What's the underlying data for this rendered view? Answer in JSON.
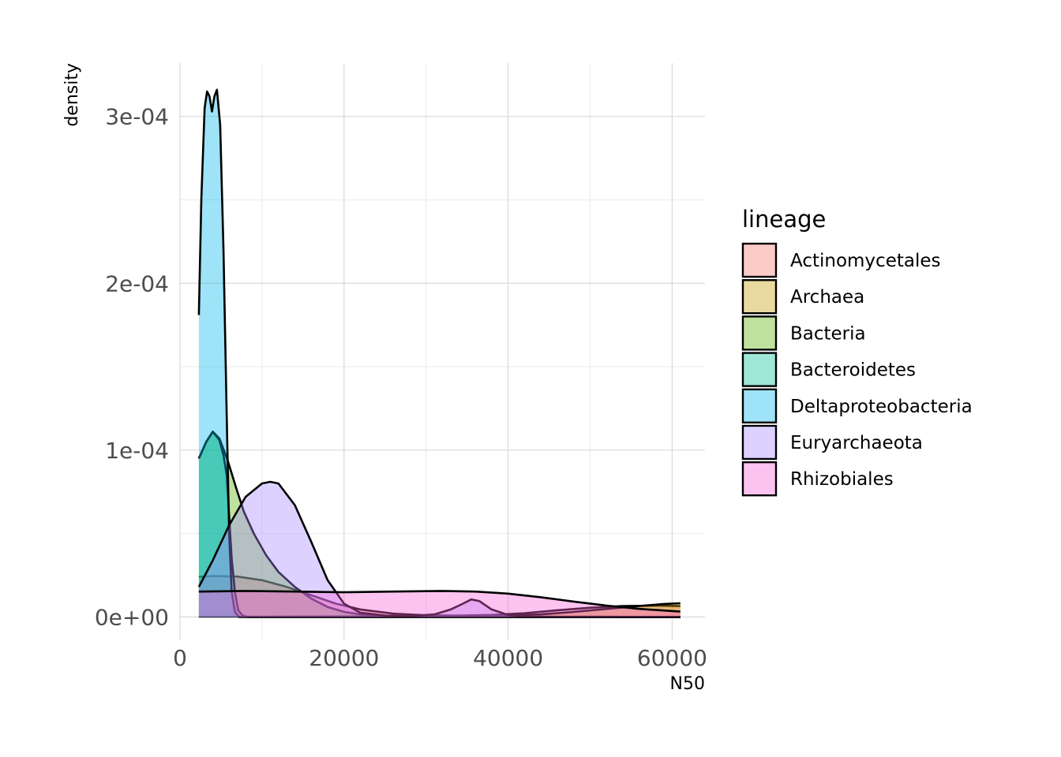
{
  "chart_data": {
    "type": "area",
    "subtype": "density",
    "xlabel": "N50",
    "ylabel": "density",
    "xlim": [
      0,
      64000
    ],
    "ylim": [
      -1.4e-05,
      0.000332
    ],
    "x_ticks": [
      0,
      20000,
      40000,
      60000
    ],
    "x_tick_labels": [
      "0",
      "20000",
      "40000",
      "60000"
    ],
    "y_ticks": [
      0,
      0.0001,
      0.0002,
      0.0003
    ],
    "y_tick_labels": [
      "0e+00",
      "1e-04",
      "2e-04",
      "3e-04"
    ],
    "grid": true,
    "legend": {
      "title": "lineage",
      "position": "right"
    },
    "series": [
      {
        "name": "Actinomycetales",
        "color": "#F8766D",
        "points": [
          [
            2300,
            2.4e-05
          ],
          [
            4000,
            2.45e-05
          ],
          [
            7000,
            2.42e-05
          ],
          [
            10000,
            2.2e-05
          ],
          [
            13000,
            1.8e-05
          ],
          [
            16000,
            1.3e-05
          ],
          [
            19000,
            8e-06
          ],
          [
            22000,
            4.5e-06
          ],
          [
            26000,
            2e-06
          ],
          [
            30000,
            1e-06
          ],
          [
            34000,
            8e-07
          ],
          [
            38000,
            1.2e-06
          ],
          [
            42000,
            2.2e-06
          ],
          [
            46000,
            4e-06
          ],
          [
            50000,
            5.5e-06
          ],
          [
            54000,
            6.5e-06
          ],
          [
            58000,
            6.8e-06
          ],
          [
            61000,
            6.5e-06
          ]
        ]
      },
      {
        "name": "Archaea",
        "color": "#C49A00",
        "points": [
          [
            2300,
            2e-07
          ],
          [
            10000,
            2e-07
          ],
          [
            20000,
            3e-07
          ],
          [
            30000,
            4e-07
          ],
          [
            36000,
            5e-07
          ],
          [
            40000,
            8e-07
          ],
          [
            44000,
            1.5e-06
          ],
          [
            48000,
            3e-06
          ],
          [
            52000,
            4.8e-06
          ],
          [
            56000,
            6.5e-06
          ],
          [
            59000,
            7.8e-06
          ],
          [
            61000,
            8.2e-06
          ]
        ]
      },
      {
        "name": "Bacteria",
        "color": "#53B400",
        "points": [
          [
            2300,
            9.5e-05
          ],
          [
            3200,
            0.000105
          ],
          [
            4000,
            0.000111
          ],
          [
            4800,
            0.000107
          ],
          [
            5800,
            9.4e-05
          ],
          [
            6800,
            7.8e-05
          ],
          [
            7800,
            6.3e-05
          ],
          [
            9000,
            5e-05
          ],
          [
            10500,
            3.7e-05
          ],
          [
            12000,
            2.7e-05
          ],
          [
            14000,
            1.8e-05
          ],
          [
            16000,
            1.1e-05
          ],
          [
            18000,
            6e-06
          ],
          [
            20000,
            3e-06
          ],
          [
            22000,
            1.5e-06
          ],
          [
            25000,
            5e-07
          ],
          [
            28000,
            1e-07
          ],
          [
            61000,
            0
          ]
        ]
      },
      {
        "name": "Bacteroidetes",
        "color": "#00C094",
        "points": [
          [
            2300,
            9.5e-05
          ],
          [
            3200,
            0.000105
          ],
          [
            4000,
            0.000111
          ],
          [
            4800,
            0.000106
          ],
          [
            5300,
            9.7e-05
          ],
          [
            5700,
            8.5e-05
          ],
          [
            6000,
            6e-05
          ],
          [
            6300,
            3.5e-05
          ],
          [
            6700,
            1.5e-05
          ],
          [
            7100,
            4e-06
          ],
          [
            7600,
            1e-06
          ],
          [
            8200,
            0
          ],
          [
            61000,
            0
          ]
        ]
      },
      {
        "name": "Deltaproteobacteria",
        "color": "#00B6EB",
        "points": [
          [
            2300,
            0.000181
          ],
          [
            2600,
            0.00025
          ],
          [
            3000,
            0.000305
          ],
          [
            3300,
            0.000315
          ],
          [
            3600,
            0.000312
          ],
          [
            3900,
            0.000303
          ],
          [
            4200,
            0.000312
          ],
          [
            4500,
            0.000316
          ],
          [
            4900,
            0.000295
          ],
          [
            5300,
            0.00022
          ],
          [
            5700,
            0.00012
          ],
          [
            6000,
            5e-05
          ],
          [
            6300,
            1.5e-05
          ],
          [
            6700,
            3e-06
          ],
          [
            7200,
            0
          ],
          [
            61000,
            0
          ]
        ]
      },
      {
        "name": "Euryarchaeota",
        "color": "#A58AFF",
        "points": [
          [
            2300,
            1.8e-05
          ],
          [
            4000,
            3.4e-05
          ],
          [
            6000,
            5.5e-05
          ],
          [
            8000,
            7.2e-05
          ],
          [
            10000,
            8e-05
          ],
          [
            11000,
            8.1e-05
          ],
          [
            12000,
            8e-05
          ],
          [
            14000,
            6.7e-05
          ],
          [
            16000,
            4.5e-05
          ],
          [
            18000,
            2.2e-05
          ],
          [
            20000,
            8e-06
          ],
          [
            22000,
            2.5e-06
          ],
          [
            25000,
            8e-07
          ],
          [
            28000,
            5e-07
          ],
          [
            31000,
            1.5e-06
          ],
          [
            33000,
            4.5e-06
          ],
          [
            34500,
            8e-06
          ],
          [
            35500,
            1.05e-05
          ],
          [
            36500,
            9.5e-06
          ],
          [
            38000,
            4.5e-06
          ],
          [
            40000,
            1.2e-06
          ],
          [
            42000,
            2e-07
          ],
          [
            61000,
            0
          ]
        ]
      },
      {
        "name": "Rhizobiales",
        "color": "#FB61D7",
        "points": [
          [
            2300,
            1.52e-05
          ],
          [
            8000,
            1.56e-05
          ],
          [
            14000,
            1.52e-05
          ],
          [
            20000,
            1.48e-05
          ],
          [
            26000,
            1.52e-05
          ],
          [
            32000,
            1.56e-05
          ],
          [
            36000,
            1.52e-05
          ],
          [
            40000,
            1.4e-05
          ],
          [
            44000,
            1.18e-05
          ],
          [
            48000,
            9.2e-06
          ],
          [
            52000,
            6.8e-06
          ],
          [
            56000,
            4.8e-06
          ],
          [
            61000,
            3.2e-06
          ]
        ]
      }
    ]
  }
}
